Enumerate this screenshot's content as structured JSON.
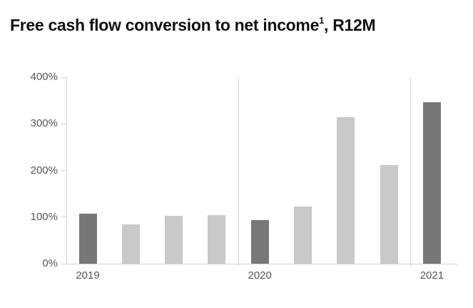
{
  "header": {
    "title_main": "Free cash flow conversion to net income",
    "title_sup": "1",
    "title_suffix": ", R12M"
  },
  "chart_data": {
    "type": "bar",
    "title": "Free cash flow conversion to net income¹, R12M",
    "unit": "%",
    "categories": [
      "2019",
      "",
      "",
      "",
      "2020",
      "",
      "",
      "",
      "2021"
    ],
    "values": [
      108,
      85,
      103,
      105,
      94,
      122,
      314,
      212,
      346
    ],
    "bar_color_keys": [
      "dark",
      "light",
      "light",
      "light",
      "dark",
      "light",
      "light",
      "light",
      "dark"
    ],
    "x_axis_labels_visible": [
      "2019",
      "2020",
      "2021"
    ],
    "ylim": [
      0,
      400
    ],
    "yticks": [
      0,
      100,
      200,
      300,
      400
    ],
    "ytick_labels": [
      "0%",
      "100%",
      "200%",
      "300%",
      "400%"
    ],
    "group_dividers_after_index": [
      3,
      7
    ],
    "grid": "off",
    "legend": "none",
    "colors": {
      "dark_bar": "#787878",
      "light_bar": "#c9c9c9",
      "axis": "#d4d4d4",
      "tick_label": "#56565e",
      "title": "#121212",
      "background": "#ffffff"
    }
  }
}
